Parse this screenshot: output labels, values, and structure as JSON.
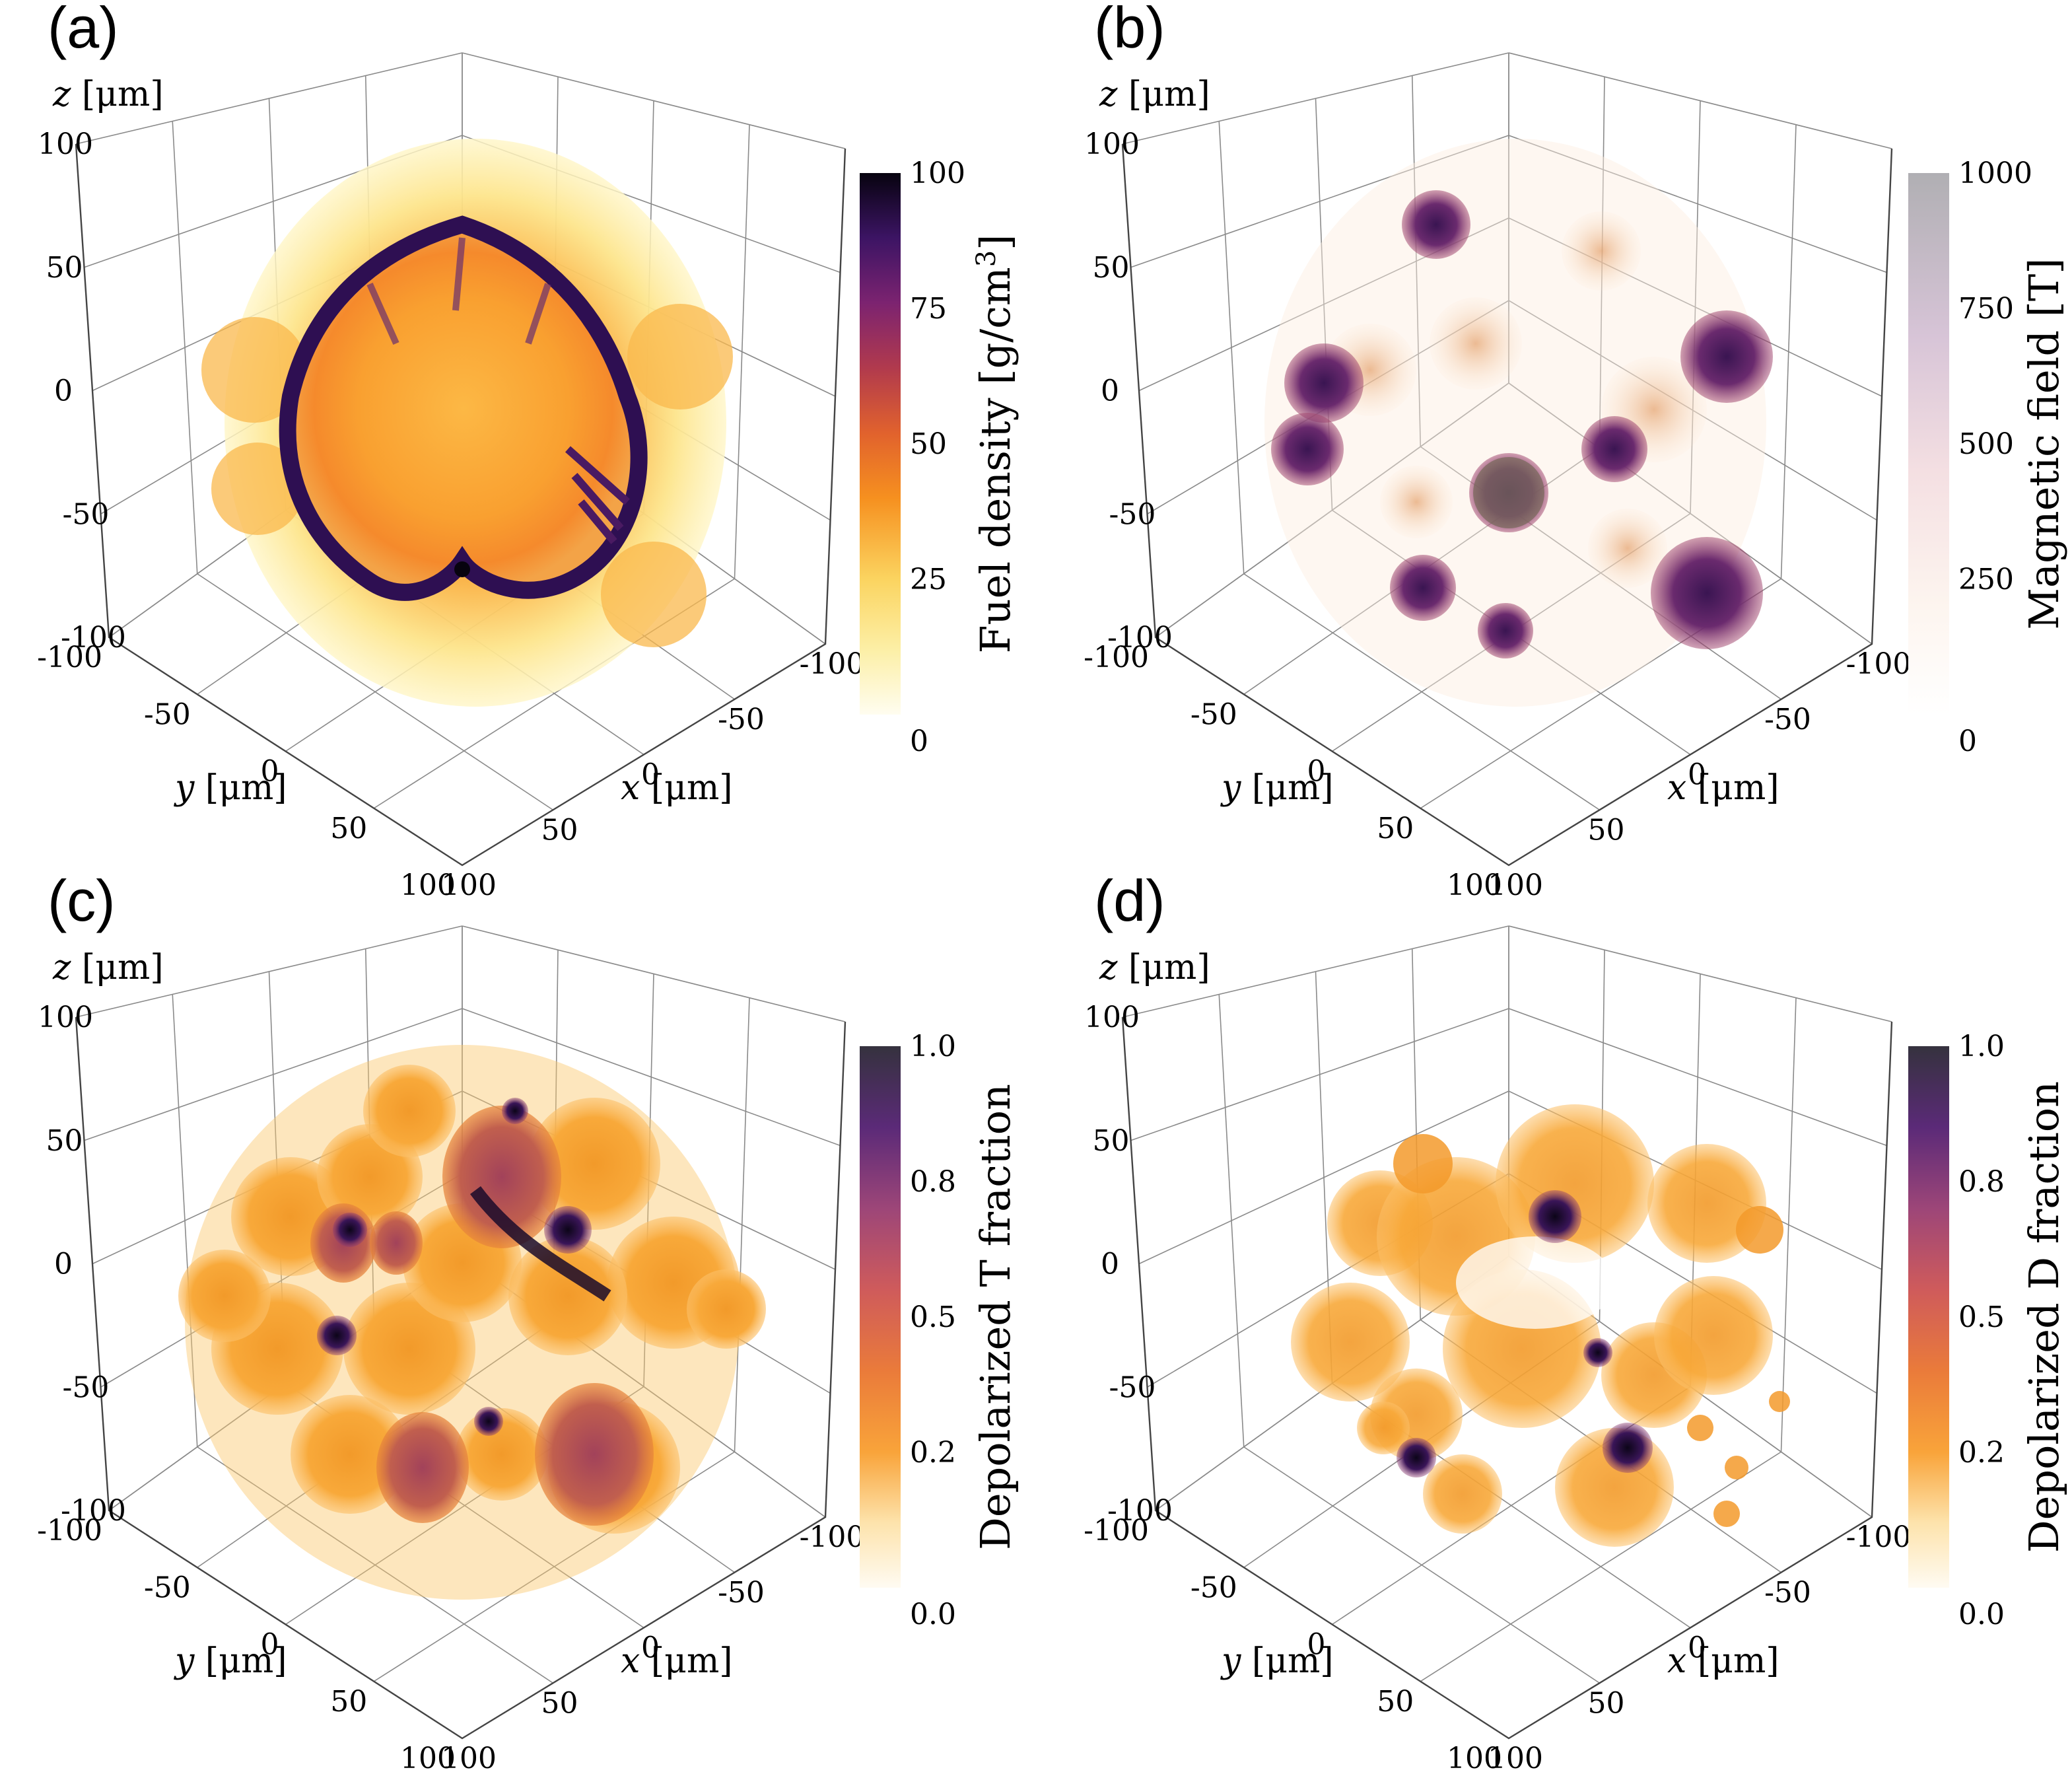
{
  "colors": {
    "inferno_light": "#fffae0",
    "inferno_yellow": "#fbe36a",
    "inferno_orange": "#f89a2a",
    "inferno_red": "#c7463e",
    "inferno_purple": "#5a1e72",
    "inferno_dark": "#0b0417",
    "mag_gray": "#b4b4b8"
  },
  "chart_data": [
    {
      "panel": "(a)",
      "type": "3d-volume-render",
      "axes": {
        "x_label": "x [μm]",
        "y_label": "y [μm]",
        "z_label": "z [μm]",
        "x_ticks": [
          "-100",
          "-50",
          "0",
          "50",
          "100"
        ],
        "y_ticks": [
          "-100",
          "-50",
          "0",
          "50",
          "100"
        ],
        "z_ticks": [
          "-100",
          "-50",
          "0",
          "50",
          "100"
        ],
        "range": [
          -100,
          100
        ]
      },
      "colorbar": {
        "label": "Fuel density [g/cm³]",
        "ticks": [
          "0",
          "25",
          "50",
          "75",
          "100"
        ],
        "range": [
          0,
          100
        ],
        "colormap": "inferno"
      }
    },
    {
      "panel": "(b)",
      "type": "3d-volume-render",
      "axes": {
        "x_label": "x [μm]",
        "y_label": "y [μm]",
        "z_label": "z [μm]",
        "x_ticks": [
          "-100",
          "-50",
          "0",
          "50",
          "100"
        ],
        "y_ticks": [
          "-100",
          "-50",
          "0",
          "50",
          "100"
        ],
        "z_ticks": [
          "-100",
          "-50",
          "0",
          "50",
          "100"
        ],
        "range": [
          -100,
          100
        ]
      },
      "colorbar": {
        "label": "Magnetic field [T]",
        "ticks": [
          "0",
          "250",
          "500",
          "750",
          "1000"
        ],
        "range": [
          0,
          1000
        ],
        "colormap": "faded-inferno"
      }
    },
    {
      "panel": "(c)",
      "type": "3d-volume-render",
      "axes": {
        "x_label": "x [μm]",
        "y_label": "y [μm]",
        "z_label": "z [μm]",
        "x_ticks": [
          "-100",
          "-50",
          "0",
          "50",
          "100"
        ],
        "y_ticks": [
          "-100",
          "-50",
          "0",
          "50",
          "100"
        ],
        "z_ticks": [
          "-100",
          "-50",
          "0",
          "50",
          "100"
        ],
        "range": [
          -100,
          100
        ]
      },
      "colorbar": {
        "label": "Depolarized T fraction",
        "ticks": [
          "0.0",
          "0.2",
          "0.5",
          "0.8",
          "1.0"
        ],
        "range": [
          0,
          1
        ],
        "colormap": "inferno"
      }
    },
    {
      "panel": "(d)",
      "type": "3d-volume-render",
      "axes": {
        "x_label": "x [μm]",
        "y_label": "y [μm]",
        "z_label": "z [μm]",
        "x_ticks": [
          "-100",
          "-50",
          "0",
          "50",
          "100"
        ],
        "y_ticks": [
          "-100",
          "-50",
          "0",
          "50",
          "100"
        ],
        "z_ticks": [
          "-100",
          "-50",
          "0",
          "50",
          "100"
        ],
        "range": [
          -100,
          100
        ]
      },
      "colorbar": {
        "label": "Depolarized D fraction",
        "ticks": [
          "0.0",
          "0.2",
          "0.5",
          "0.8",
          "1.0"
        ],
        "range": [
          0,
          1
        ],
        "colormap": "inferno"
      }
    }
  ]
}
